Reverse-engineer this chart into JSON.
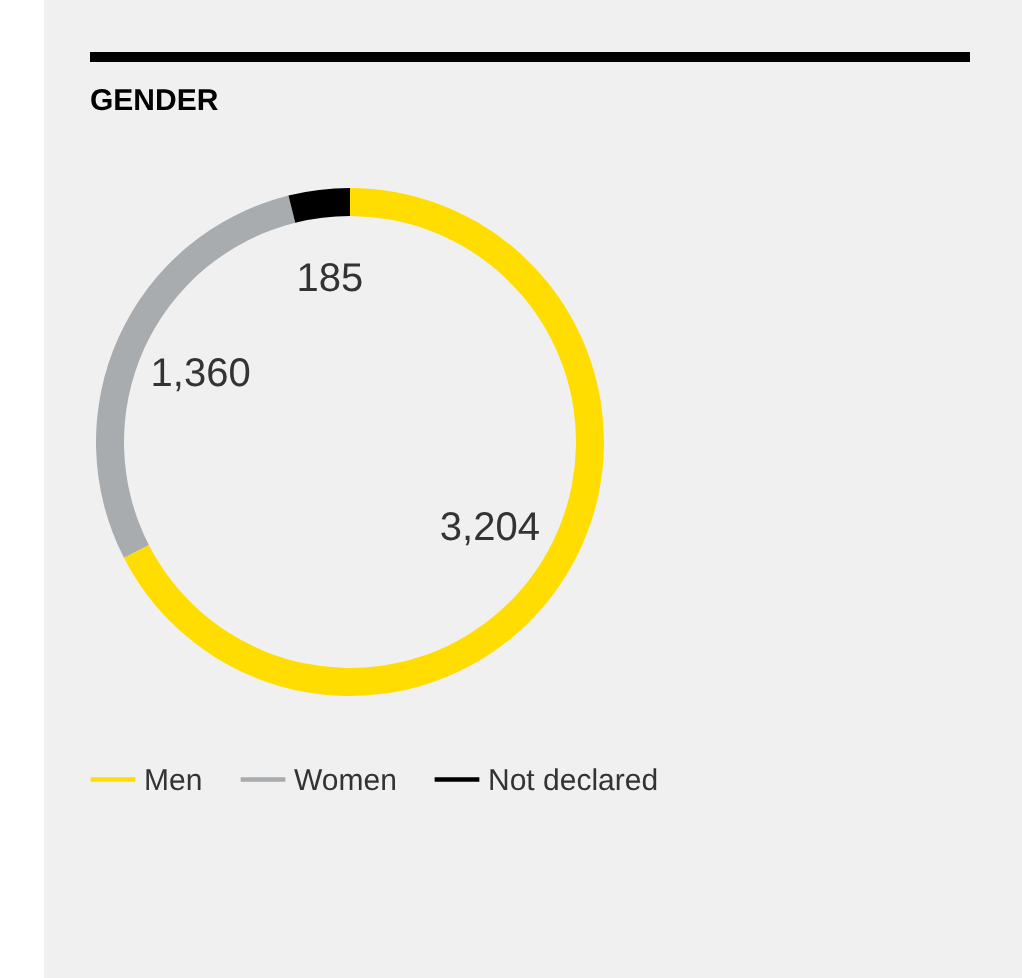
{
  "chart_data": {
    "type": "donut",
    "title": "GENDER",
    "categories": [
      "Men",
      "Women",
      "Not declared"
    ],
    "values": [
      3204,
      1360,
      185
    ],
    "colors": [
      "#ffdd00",
      "#a9acaf",
      "#000000"
    ],
    "value_labels": [
      "3,204",
      "1,360",
      "185"
    ],
    "legend": "bottom"
  }
}
